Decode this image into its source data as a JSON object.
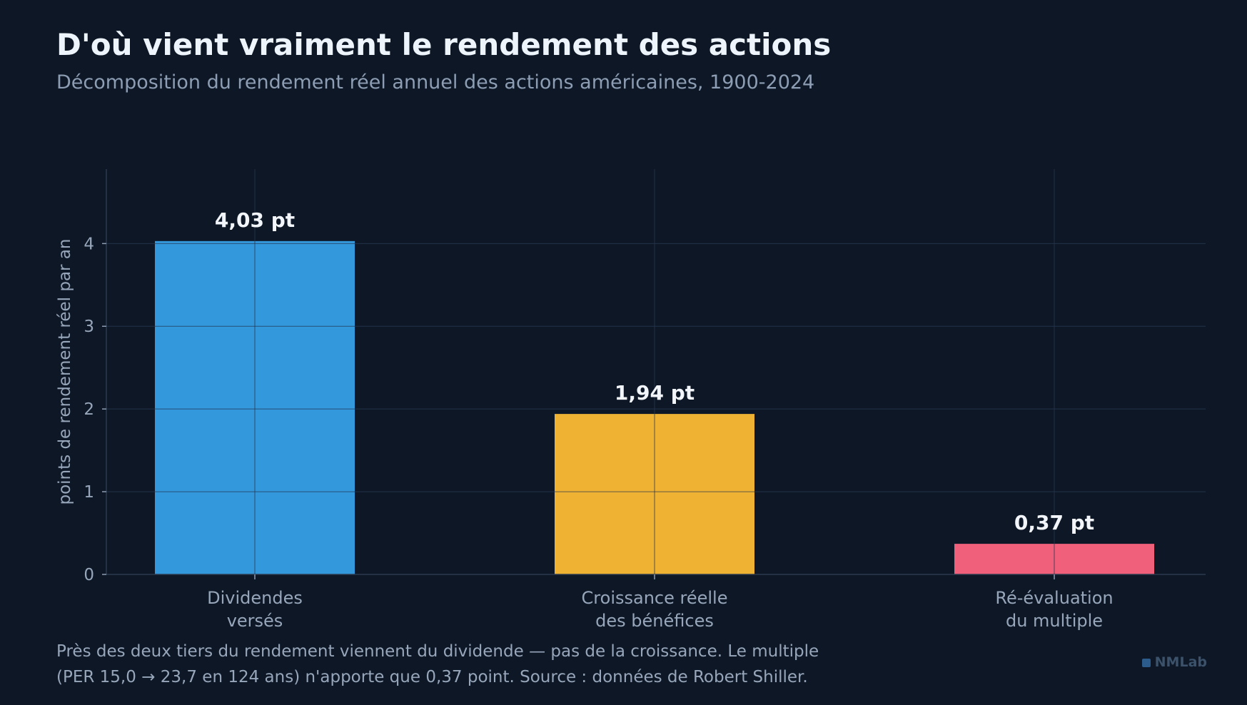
{
  "title": "D'où vient vraiment le rendement des actions",
  "subtitle": "Décomposition du rendement réel annuel des actions américaines, 1900-2024",
  "footnote": {
    "line1": "Près des deux tiers du rendement viennent du dividende — pas de la croissance. Le multiple",
    "line2": "(PER 15,0 → 23,7 en 124 ans) n'apporte que 0,37 point. Source : données de Robert Shiller."
  },
  "brand": "NMLab",
  "colors": {
    "background": "#0d1726",
    "grid": "#1f2c3d",
    "axis": "#2c3a4e",
    "tick_text": "#97a6ba",
    "value_label": "#f2f6fb"
  },
  "chart_data": {
    "type": "bar",
    "categories": [
      [
        "Dividendes",
        "versés"
      ],
      [
        "Croissance réelle",
        "des bénéfices"
      ],
      [
        "Ré-évaluation",
        "du multiple"
      ]
    ],
    "values": [
      4.03,
      1.94,
      0.37
    ],
    "value_labels": [
      "4,03 pt",
      "1,94 pt",
      "0,37 pt"
    ],
    "bar_colors": [
      "#3498dc",
      "#f0b233",
      "#f0607b"
    ],
    "ylabel": "points de rendement réel par an",
    "ylim": [
      0,
      4.9
    ],
    "yticks": [
      0,
      1,
      2,
      3,
      4
    ],
    "grid": true
  }
}
